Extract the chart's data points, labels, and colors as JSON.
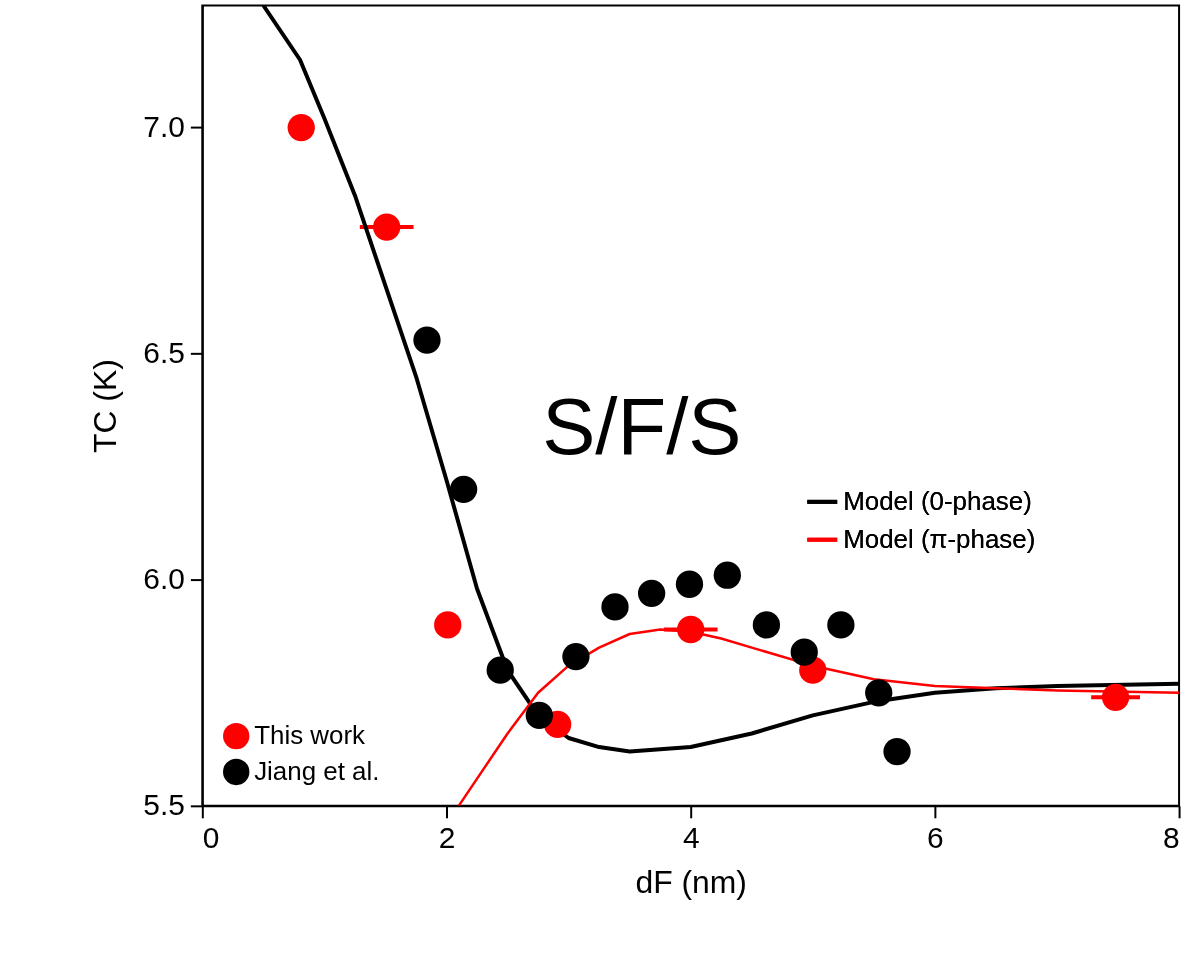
{
  "chart_data": {
    "type": "scatter",
    "xlabel": "dF (nm)",
    "ylabel": "TC (K)",
    "xlim": [
      0,
      8
    ],
    "xticks": [
      0,
      2,
      4,
      6,
      8
    ],
    "ylim": [
      5.5,
      7.27
    ],
    "yticks": [
      {
        "value": 5.5,
        "label": "5.5"
      },
      {
        "value": 6.0,
        "label": "6.0"
      },
      {
        "value": 6.5,
        "label": "6.5"
      },
      {
        "value": 7.0,
        "label": "7.0"
      }
    ],
    "legend": "bottom left",
    "annotations": [
      "S/F/S"
    ],
    "series": [
      {
        "name": "This work",
        "color": "#ff0000",
        "marker": "circle",
        "x": [
          0.81,
          1.51,
          2.01,
          2.91,
          4.0,
          5.0,
          7.48
        ],
        "values": [
          7.0,
          6.78,
          5.9,
          5.68,
          5.89,
          5.8,
          5.74
        ],
        "xerrors": [
          null,
          0.22,
          null,
          null,
          0.22,
          null,
          0.2
        ]
      },
      {
        "name": "Jiang et al.",
        "color": "#000000",
        "marker": "circle",
        "x": [
          1.84,
          2.14,
          2.44,
          2.76,
          3.06,
          3.38,
          3.68,
          3.99,
          4.3,
          4.62,
          4.93,
          5.23,
          5.54,
          5.69
        ],
        "values": [
          6.53,
          6.2,
          5.8,
          5.7,
          5.83,
          5.94,
          5.97,
          5.99,
          6.01,
          5.9,
          5.84,
          5.9,
          5.75,
          5.62
        ]
      },
      {
        "name": "Model (0-phase)",
        "color": "#000000",
        "type": "line",
        "x": [
          0.5,
          0.8,
          1.0,
          1.25,
          1.5,
          1.75,
          2.0,
          2.25,
          2.5,
          2.75,
          3.0,
          3.25,
          3.5,
          4.0,
          4.5,
          5.0,
          5.5,
          6.0,
          6.5,
          7.0,
          8.0
        ],
        "values": [
          7.27,
          7.15,
          7.02,
          6.85,
          6.65,
          6.45,
          6.22,
          5.98,
          5.8,
          5.7,
          5.65,
          5.63,
          5.62,
          5.63,
          5.66,
          5.7,
          5.73,
          5.75,
          5.76,
          5.765,
          5.77
        ]
      },
      {
        "name": "Model (π-phase)",
        "color": "#ff0000",
        "type": "line",
        "x": [
          2.1,
          2.3,
          2.5,
          2.75,
          3.0,
          3.25,
          3.5,
          3.75,
          4.0,
          4.25,
          4.5,
          5.0,
          5.5,
          6.0,
          6.5,
          7.0,
          8.0
        ],
        "values": [
          5.5,
          5.58,
          5.66,
          5.75,
          5.81,
          5.85,
          5.88,
          5.89,
          5.885,
          5.87,
          5.85,
          5.81,
          5.78,
          5.765,
          5.76,
          5.755,
          5.75
        ]
      }
    ]
  }
}
